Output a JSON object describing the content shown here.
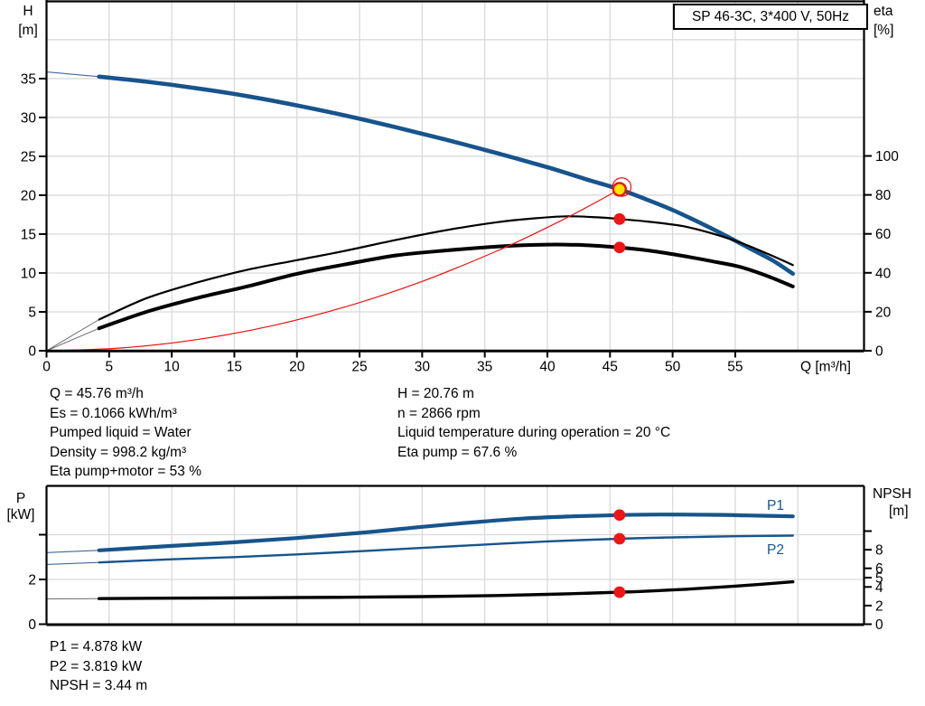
{
  "title_box": "SP 46-3C, 3*400 V, 50Hz",
  "colors": {
    "curve_blue": "#17548c",
    "red": "#ee1111",
    "yellow": "#ffe600",
    "grid": "#d9d9d9"
  },
  "top_chart": {
    "y_left": {
      "title": [
        "H",
        "[m]"
      ],
      "ticks": [
        {
          "v": 35,
          "label": "35"
        },
        {
          "v": 30,
          "label": "30"
        },
        {
          "v": 25,
          "label": "25"
        },
        {
          "v": 20,
          "label": "20"
        },
        {
          "v": 15,
          "label": "15"
        },
        {
          "v": 10,
          "label": "10"
        },
        {
          "v": 5,
          "label": "5"
        },
        {
          "v": 0,
          "label": "0"
        }
      ]
    },
    "y_right": {
      "title": [
        "eta",
        "[%]"
      ],
      "ticks": [
        {
          "v": 100,
          "label": "100"
        },
        {
          "v": 80,
          "label": "80"
        },
        {
          "v": 60,
          "label": "60"
        },
        {
          "v": 40,
          "label": "40"
        },
        {
          "v": 20,
          "label": "20"
        },
        {
          "v": 0,
          "label": "0"
        }
      ]
    },
    "x_axis": {
      "title": "Q [m³/h]",
      "ticks": [
        {
          "v": 0,
          "label": "0"
        },
        {
          "v": 5,
          "label": "5"
        },
        {
          "v": 10,
          "label": "10"
        },
        {
          "v": 15,
          "label": "15"
        },
        {
          "v": 20,
          "label": "20"
        },
        {
          "v": 25,
          "label": "25"
        },
        {
          "v": 30,
          "label": "30"
        },
        {
          "v": 35,
          "label": "35"
        },
        {
          "v": 40,
          "label": "40"
        },
        {
          "v": 45,
          "label": "45"
        },
        {
          "v": 50,
          "label": "50"
        },
        {
          "v": 55,
          "label": "55"
        }
      ]
    }
  },
  "bottom_chart": {
    "y_left": {
      "title": [
        "P",
        "[kW]"
      ],
      "ticks": [
        {
          "v": 4,
          "label": ""
        },
        {
          "v": 2,
          "label": "2"
        },
        {
          "v": 0,
          "label": "0"
        }
      ]
    },
    "y_right": {
      "title": [
        "NPSH",
        "[m]"
      ],
      "ticks": [
        {
          "v": 10,
          "label": ""
        },
        {
          "v": 8,
          "label": "8"
        },
        {
          "v": 6,
          "label": "6"
        },
        {
          "v": 5,
          "label": "5"
        },
        {
          "v": 4,
          "label": "4"
        },
        {
          "v": 2,
          "label": "2"
        },
        {
          "v": 0,
          "label": "0"
        }
      ]
    },
    "curve_labels": {
      "p1": "P1",
      "p2": "P2"
    }
  },
  "info_top": {
    "left": [
      "Q = 45.76 m³/h",
      "Es = 0.1066 kWh/m³",
      "Pumped liquid = Water",
      "Density = 998.2 kg/m³",
      "Eta pump+motor = 53 %"
    ],
    "right": [
      "H = 20.76 m",
      "n = 2866 rpm",
      "Liquid temperature during operation = 20 °C",
      "Eta pump = 67.6 %"
    ]
  },
  "info_bottom": [
    "P1 = 4.878 kW",
    "P2 = 3.819 kW",
    "NPSH = 3.44 m"
  ],
  "duty_point": {
    "q_m3h": 45.76,
    "h_m": 20.76,
    "eta_pump_pct": 67.6,
    "eta_pump_motor_pct": 53,
    "es_kwh_m3": 0.1066,
    "n_rpm": 2866,
    "p1_kw": 4.878,
    "p2_kw": 3.819,
    "npsh_m": 3.44,
    "pumped_liquid": "Water",
    "density_kg_m3": 998.2,
    "liquid_temp_c": 20
  },
  "chart_data": {
    "type": "line",
    "charts": [
      {
        "id": "top",
        "title": "Pump curve SP 46-3C, 3*400 V, 50Hz",
        "x_label": "Q [m³/h]",
        "x_range": [
          0,
          65.3
        ],
        "left_axis": {
          "label": "H [m]",
          "range": [
            0,
            45
          ]
        },
        "right_axis": {
          "label": "eta [%]",
          "range": [
            0,
            100
          ]
        },
        "grid": {
          "h_axis": "H",
          "h_values": [
            5,
            10,
            15,
            20,
            25,
            30,
            35,
            40
          ],
          "q_values": [
            5,
            10,
            15,
            20,
            25,
            30,
            35,
            40,
            45,
            50,
            55,
            60
          ]
        },
        "series": [
          {
            "name": "head-curve-lead-in",
            "axis": "H",
            "style": "blue-thin",
            "points": [
              [
                0,
                35.85
              ],
              [
                4.2,
                35.25
              ]
            ]
          },
          {
            "name": "head-curve",
            "axis": "H",
            "style": "blue-thick",
            "points": [
              [
                4.2,
                35.25
              ],
              [
                8,
                34.6
              ],
              [
                12,
                33.75
              ],
              [
                16,
                32.75
              ],
              [
                20,
                31.55
              ],
              [
                24,
                30.2
              ],
              [
                28,
                28.7
              ],
              [
                32,
                27.1
              ],
              [
                36,
                25.4
              ],
              [
                40,
                23.6
              ],
              [
                43,
                22.1
              ],
              [
                45.76,
                20.76
              ],
              [
                48,
                19.4
              ],
              [
                50,
                18.1
              ],
              [
                52,
                16.6
              ],
              [
                54,
                15.0
              ],
              [
                56,
                13.3
              ],
              [
                58,
                11.6
              ],
              [
                59.6,
                9.9
              ]
            ]
          },
          {
            "name": "eta-pump-lead-in",
            "axis": "ETA",
            "style": "black-thin",
            "points": [
              [
                0,
                0
              ],
              [
                4.2,
                16
              ]
            ]
          },
          {
            "name": "eta-pump",
            "axis": "ETA",
            "style": "black-med",
            "points": [
              [
                4.2,
                16
              ],
              [
                8,
                27
              ],
              [
                12,
                35
              ],
              [
                16,
                41.5
              ],
              [
                20,
                46.5
              ],
              [
                24,
                51.5
              ],
              [
                28,
                57
              ],
              [
                32,
                62
              ],
              [
                36,
                66
              ],
              [
                39,
                68
              ],
              [
                41.5,
                69
              ],
              [
                44,
                68.5
              ],
              [
                45.76,
                67.6
              ],
              [
                48,
                66.3
              ],
              [
                50.8,
                64
              ],
              [
                53,
                60.5
              ],
              [
                55.4,
                55.5
              ],
              [
                57.5,
                50
              ],
              [
                59.6,
                44
              ]
            ]
          },
          {
            "name": "eta-pump-motor-lead-in",
            "axis": "ETA",
            "style": "black-thin",
            "points": [
              [
                0,
                0
              ],
              [
                4.2,
                11.5
              ]
            ]
          },
          {
            "name": "eta-pump-motor",
            "axis": "ETA",
            "style": "black-thick",
            "points": [
              [
                4.2,
                11.5
              ],
              [
                8,
                20
              ],
              [
                12,
                27
              ],
              [
                16,
                33
              ],
              [
                20,
                39.5
              ],
              [
                24,
                44.5
              ],
              [
                28,
                49
              ],
              [
                32,
                51.5
              ],
              [
                36,
                53.5
              ],
              [
                40,
                54.5
              ],
              [
                43,
                54.2
              ],
              [
                45.76,
                53
              ],
              [
                48,
                51.5
              ],
              [
                51,
                48.5
              ],
              [
                53.5,
                45.5
              ],
              [
                55.4,
                43
              ],
              [
                57.5,
                38.5
              ],
              [
                59.6,
                33
              ]
            ]
          },
          {
            "name": "system-curve",
            "axis": "H",
            "style": "red-thin",
            "points": [
              [
                0,
                0
              ],
              [
                6,
                0.36
              ],
              [
                12,
                1.43
              ],
              [
                18,
                3.21
              ],
              [
                24,
                5.71
              ],
              [
                30,
                8.92
              ],
              [
                36,
                12.85
              ],
              [
                40,
                15.86
              ],
              [
                43,
                18.33
              ],
              [
                45.76,
                20.76
              ]
            ]
          }
        ],
        "markers": [
          {
            "kind": "duty",
            "axis": "H",
            "q": 45.76,
            "v": 20.76
          },
          {
            "kind": "dot",
            "axis": "ETA",
            "q": 45.76,
            "v": 67.6
          },
          {
            "kind": "dot",
            "axis": "ETA",
            "q": 45.76,
            "v": 53
          }
        ]
      },
      {
        "id": "bottom",
        "title": "Power and NPSH curves",
        "x_label": "Q [m³/h]",
        "x_range": [
          0,
          65.3
        ],
        "left_axis": {
          "label": "P [kW]",
          "range": [
            0,
            6.2
          ]
        },
        "right_axis": {
          "label": "NPSH [m]",
          "range": [
            0,
            15
          ]
        },
        "grid": {
          "h_axis": "P",
          "h_values": [
            2,
            4
          ],
          "q_values": [
            5,
            10,
            15,
            20,
            25,
            30,
            35,
            40,
            45,
            50,
            55,
            60
          ]
        },
        "series": [
          {
            "name": "p1-lead-in",
            "axis": "P",
            "style": "blue-thin",
            "points": [
              [
                0,
                3.2
              ],
              [
                4.2,
                3.3
              ]
            ]
          },
          {
            "name": "p1-curve",
            "axis": "P",
            "style": "blue-p1",
            "points": [
              [
                4.2,
                3.3
              ],
              [
                10,
                3.5
              ],
              [
                15,
                3.66
              ],
              [
                20,
                3.85
              ],
              [
                25,
                4.08
              ],
              [
                30,
                4.35
              ],
              [
                34,
                4.55
              ],
              [
                38,
                4.72
              ],
              [
                42,
                4.82
              ],
              [
                45.76,
                4.878
              ],
              [
                49,
                4.9
              ],
              [
                53,
                4.89
              ],
              [
                56,
                4.86
              ],
              [
                59.6,
                4.82
              ]
            ]
          },
          {
            "name": "p2-lead-in",
            "axis": "P",
            "style": "blue-thin",
            "points": [
              [
                0,
                2.67
              ],
              [
                4.2,
                2.76
              ]
            ]
          },
          {
            "name": "p2-curve",
            "axis": "P",
            "style": "blue-med",
            "points": [
              [
                4.2,
                2.76
              ],
              [
                10,
                2.9
              ],
              [
                15,
                3.0
              ],
              [
                20,
                3.12
              ],
              [
                25,
                3.26
              ],
              [
                30,
                3.41
              ],
              [
                35,
                3.56
              ],
              [
                40,
                3.7
              ],
              [
                45.76,
                3.819
              ],
              [
                50,
                3.88
              ],
              [
                55,
                3.93
              ],
              [
                59.6,
                3.96
              ]
            ]
          },
          {
            "name": "npsh-lead-in",
            "axis": "NPSH",
            "style": "black-thin",
            "points": [
              [
                0,
                2.72
              ],
              [
                4.2,
                2.75
              ]
            ]
          },
          {
            "name": "npsh-curve",
            "axis": "NPSH",
            "style": "black-npsh",
            "points": [
              [
                4.2,
                2.75
              ],
              [
                10,
                2.8
              ],
              [
                20,
                2.86
              ],
              [
                30,
                2.96
              ],
              [
                36,
                3.08
              ],
              [
                40,
                3.2
              ],
              [
                43,
                3.32
              ],
              [
                45.76,
                3.44
              ],
              [
                48,
                3.55
              ],
              [
                51,
                3.75
              ],
              [
                54,
                4.0
              ],
              [
                57,
                4.28
              ],
              [
                59.6,
                4.55
              ]
            ]
          }
        ],
        "markers": [
          {
            "kind": "dot",
            "axis": "P",
            "q": 45.76,
            "v": 4.878
          },
          {
            "kind": "dot",
            "axis": "P",
            "q": 45.76,
            "v": 3.819
          },
          {
            "kind": "dot",
            "axis": "NPSH",
            "q": 45.76,
            "v": 3.44
          }
        ]
      }
    ]
  }
}
